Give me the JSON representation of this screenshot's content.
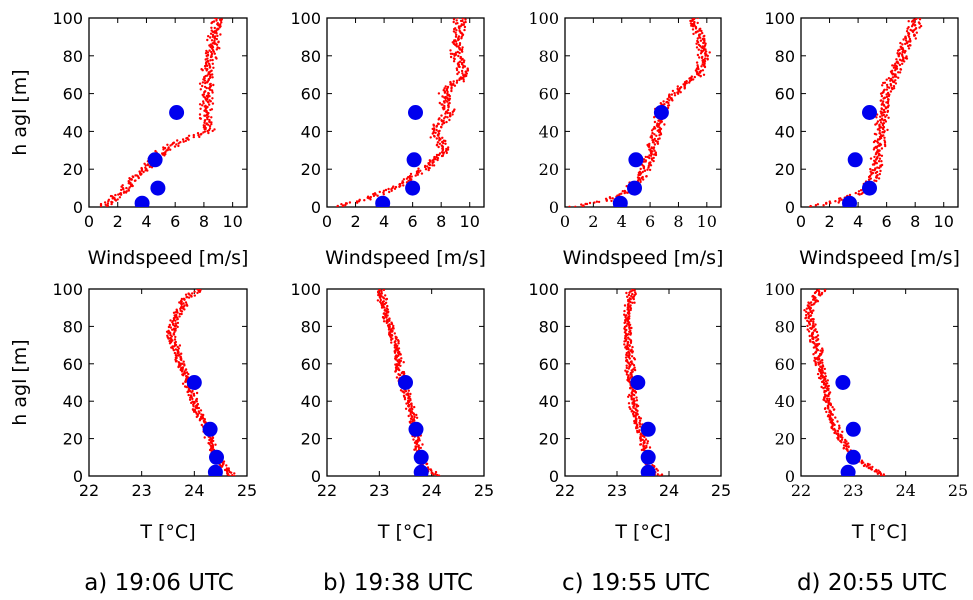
{
  "panels": [
    {
      "id": "a",
      "caption": "a) 19:06 UTC"
    },
    {
      "id": "b",
      "caption": "b) 19:38 UTC"
    },
    {
      "id": "c",
      "caption": "c) 19:55 UTC"
    },
    {
      "id": "d",
      "caption": "d) 20:55 UTC"
    }
  ],
  "chart_data": [
    {
      "type": "scatter",
      "panel": "a",
      "row": "wind",
      "xlabel": "Windspeed [m/s]",
      "ylabel": "h agl [m]",
      "xlim": [
        0,
        11
      ],
      "ylim": [
        0,
        100
      ],
      "xticks": [
        "0",
        "2",
        "4",
        "6",
        "8",
        "10"
      ],
      "yticks": [
        "0",
        "20",
        "40",
        "60",
        "80",
        "100"
      ],
      "series": [
        {
          "color": "#ff0000",
          "marker": "dot",
          "profile": [
            [
              0,
              0.8
            ],
            [
              3,
              1.5
            ],
            [
              10,
              2.6
            ],
            [
              20,
              3.8
            ],
            [
              30,
              5.2
            ],
            [
              36,
              6.8
            ],
            [
              40,
              8.3
            ],
            [
              50,
              8.1
            ],
            [
              60,
              8.2
            ],
            [
              70,
              8.3
            ],
            [
              80,
              8.5
            ],
            [
              90,
              8.7
            ],
            [
              100,
              9.0
            ]
          ]
        },
        {
          "color": "#0000ee",
          "marker": "circle",
          "points": [
            [
              3.7,
              2
            ],
            [
              4.8,
              10
            ],
            [
              4.6,
              25
            ],
            [
              6.1,
              50
            ]
          ]
        }
      ]
    },
    {
      "type": "scatter",
      "panel": "b",
      "row": "wind",
      "xlabel": "Windspeed [m/s]",
      "ylabel": "",
      "xlim": [
        0,
        11
      ],
      "ylim": [
        0,
        100
      ],
      "xticks": [
        "0",
        "2",
        "4",
        "6",
        "8",
        "10"
      ],
      "yticks": [
        "0",
        "20",
        "40",
        "60",
        "80",
        "100"
      ],
      "series": [
        {
          "color": "#ff0000",
          "marker": "dot",
          "profile": [
            [
              0,
              0.5
            ],
            [
              3,
              2.2
            ],
            [
              10,
              4.8
            ],
            [
              20,
              6.8
            ],
            [
              25,
              7.6
            ],
            [
              30,
              8.2
            ],
            [
              40,
              7.6
            ],
            [
              50,
              8.5
            ],
            [
              60,
              8.2
            ],
            [
              70,
              9.6
            ],
            [
              80,
              9.1
            ],
            [
              90,
              9.2
            ],
            [
              100,
              9.4
            ]
          ]
        },
        {
          "color": "#0000ee",
          "marker": "circle",
          "points": [
            [
              3.9,
              2
            ],
            [
              6.0,
              10
            ],
            [
              6.1,
              25
            ],
            [
              6.2,
              50
            ]
          ]
        }
      ]
    },
    {
      "type": "scatter",
      "panel": "c",
      "row": "wind",
      "xlabel": "Windspeed [m/s]",
      "ylabel": "",
      "xlim": [
        0,
        11
      ],
      "ylim": [
        0,
        100
      ],
      "xticks": [
        "0",
        "2",
        "4",
        "6",
        "8",
        "10"
      ],
      "yticks": [
        "0",
        "20",
        "40",
        "60",
        "80",
        "100"
      ],
      "series": [
        {
          "color": "#ff0000",
          "marker": "dot",
          "profile": [
            [
              0,
              0.5
            ],
            [
              3,
              2.8
            ],
            [
              8,
              4.3
            ],
            [
              15,
              5.3
            ],
            [
              25,
              5.9
            ],
            [
              35,
              6.2
            ],
            [
              45,
              6.6
            ],
            [
              55,
              6.9
            ],
            [
              65,
              8.5
            ],
            [
              70,
              9.4
            ],
            [
              80,
              9.8
            ],
            [
              90,
              9.6
            ],
            [
              100,
              9.0
            ]
          ]
        },
        {
          "color": "#0000ee",
          "marker": "circle",
          "points": [
            [
              3.9,
              2
            ],
            [
              4.9,
              10
            ],
            [
              5.0,
              25
            ],
            [
              6.8,
              50
            ]
          ]
        }
      ]
    },
    {
      "type": "scatter",
      "panel": "d",
      "row": "wind",
      "xlabel": "Windspeed [m/s]",
      "ylabel": "",
      "xlim": [
        0,
        11
      ],
      "ylim": [
        0,
        100
      ],
      "xticks": [
        "0",
        "2",
        "4",
        "6",
        "8",
        "10"
      ],
      "yticks": [
        "0",
        "20",
        "40",
        "60",
        "80",
        "100"
      ],
      "series": [
        {
          "color": "#ff0000",
          "marker": "dot",
          "profile": [
            [
              0,
              0.6
            ],
            [
              3,
              2.5
            ],
            [
              8,
              4.4
            ],
            [
              15,
              5.1
            ],
            [
              25,
              5.3
            ],
            [
              40,
              5.6
            ],
            [
              55,
              5.9
            ],
            [
              65,
              6.2
            ],
            [
              75,
              6.8
            ],
            [
              85,
              7.3
            ],
            [
              95,
              7.9
            ],
            [
              100,
              8.1
            ]
          ]
        },
        {
          "color": "#0000ee",
          "marker": "circle",
          "points": [
            [
              3.4,
              2
            ],
            [
              4.8,
              10
            ],
            [
              3.8,
              25
            ],
            [
              4.8,
              50
            ]
          ]
        }
      ]
    },
    {
      "type": "scatter",
      "panel": "a",
      "row": "temperature",
      "xlabel": "T [°C]",
      "ylabel": "h agl [m]",
      "xlim": [
        22,
        25
      ],
      "ylim": [
        0,
        100
      ],
      "xticks": [
        "22",
        "23",
        "24",
        "25"
      ],
      "yticks": [
        "0",
        "20",
        "40",
        "60",
        "80",
        "100"
      ],
      "series": [
        {
          "color": "#ff0000",
          "marker": "dot",
          "profile": [
            [
              0,
              24.75
            ],
            [
              5,
              24.55
            ],
            [
              15,
              24.35
            ],
            [
              25,
              24.25
            ],
            [
              35,
              24.05
            ],
            [
              45,
              23.95
            ],
            [
              55,
              23.8
            ],
            [
              65,
              23.7
            ],
            [
              75,
              23.55
            ],
            [
              85,
              23.65
            ],
            [
              95,
              23.85
            ],
            [
              100,
              24.1
            ]
          ]
        },
        {
          "color": "#0000ee",
          "marker": "circle",
          "points": [
            [
              24.4,
              2
            ],
            [
              24.42,
              10
            ],
            [
              24.3,
              25
            ],
            [
              24.0,
              50
            ]
          ]
        }
      ]
    },
    {
      "type": "scatter",
      "panel": "b",
      "row": "temperature",
      "xlabel": "T [°C]",
      "ylabel": "",
      "xlim": [
        22,
        25
      ],
      "ylim": [
        0,
        100
      ],
      "xticks": [
        "22",
        "23",
        "24",
        "25"
      ],
      "yticks": [
        "0",
        "20",
        "40",
        "60",
        "80",
        "100"
      ],
      "series": [
        {
          "color": "#ff0000",
          "marker": "dot",
          "profile": [
            [
              0,
              24.1
            ],
            [
              5,
              23.85
            ],
            [
              15,
              23.75
            ],
            [
              25,
              23.7
            ],
            [
              35,
              23.6
            ],
            [
              45,
              23.5
            ],
            [
              55,
              23.4
            ],
            [
              65,
              23.35
            ],
            [
              75,
              23.25
            ],
            [
              85,
              23.15
            ],
            [
              95,
              23.05
            ],
            [
              100,
              23.0
            ]
          ]
        },
        {
          "color": "#0000ee",
          "marker": "circle",
          "points": [
            [
              23.8,
              2
            ],
            [
              23.8,
              10
            ],
            [
              23.7,
              25
            ],
            [
              23.5,
              50
            ]
          ]
        }
      ]
    },
    {
      "type": "scatter",
      "panel": "c",
      "row": "temperature",
      "xlabel": "T [°C]",
      "ylabel": "",
      "xlim": [
        22,
        25
      ],
      "ylim": [
        0,
        100
      ],
      "xticks": [
        "22",
        "23",
        "24",
        "25"
      ],
      "yticks": [
        "0",
        "20",
        "40",
        "60",
        "80",
        "100"
      ],
      "series": [
        {
          "color": "#ff0000",
          "marker": "dot",
          "profile": [
            [
              0,
              23.8
            ],
            [
              5,
              23.65
            ],
            [
              15,
              23.55
            ],
            [
              25,
              23.45
            ],
            [
              35,
              23.35
            ],
            [
              45,
              23.3
            ],
            [
              55,
              23.25
            ],
            [
              65,
              23.25
            ],
            [
              75,
              23.2
            ],
            [
              85,
              23.2
            ],
            [
              95,
              23.25
            ],
            [
              100,
              23.3
            ]
          ]
        },
        {
          "color": "#0000ee",
          "marker": "circle",
          "points": [
            [
              23.6,
              2
            ],
            [
              23.6,
              10
            ],
            [
              23.6,
              25
            ],
            [
              23.4,
              50
            ]
          ]
        }
      ]
    },
    {
      "type": "scatter",
      "panel": "d",
      "row": "temperature",
      "xlabel": "T [°C]",
      "ylabel": "",
      "xlim": [
        22,
        25
      ],
      "ylim": [
        0,
        100
      ],
      "xticks": [
        "22",
        "23",
        "24",
        "25"
      ],
      "yticks": [
        "0",
        "20",
        "40",
        "60",
        "80",
        "100"
      ],
      "series": [
        {
          "color": "#ff0000",
          "marker": "dot",
          "profile": [
            [
              0,
              23.6
            ],
            [
              5,
              23.3
            ],
            [
              10,
              23.0
            ],
            [
              20,
              22.75
            ],
            [
              30,
              22.6
            ],
            [
              40,
              22.5
            ],
            [
              50,
              22.45
            ],
            [
              60,
              22.35
            ],
            [
              70,
              22.3
            ],
            [
              80,
              22.2
            ],
            [
              90,
              22.15
            ],
            [
              100,
              22.4
            ]
          ]
        },
        {
          "color": "#0000ee",
          "marker": "circle",
          "points": [
            [
              22.9,
              2
            ],
            [
              23.0,
              10
            ],
            [
              23.0,
              25
            ],
            [
              22.8,
              50
            ]
          ]
        }
      ]
    }
  ]
}
